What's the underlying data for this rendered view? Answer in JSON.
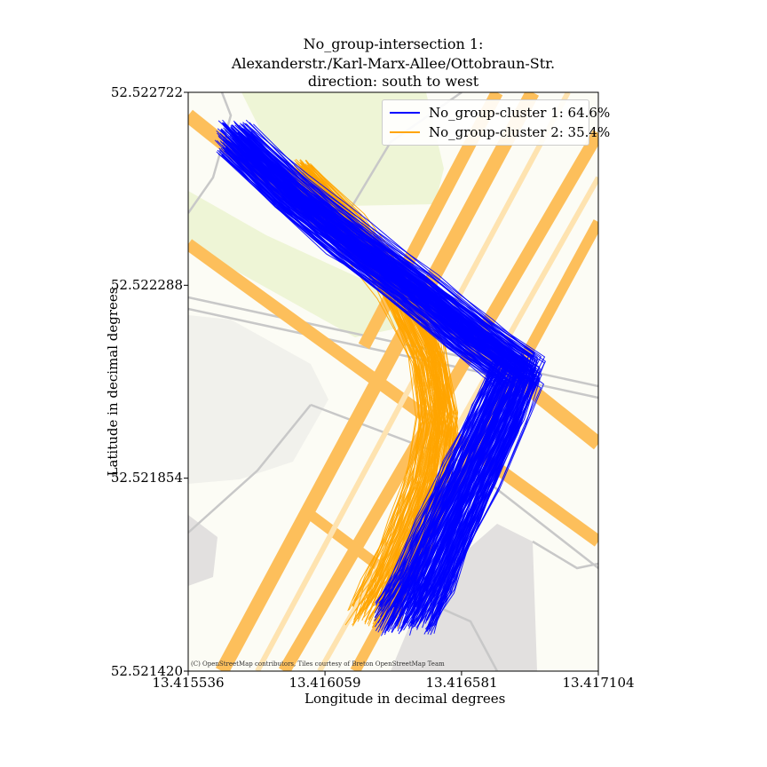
{
  "title": {
    "line1": "No_group-intersection 1:",
    "line2": "Alexanderstr./Karl-Marx-Allee/Ottobraun-Str.",
    "line3": "direction: south to west"
  },
  "attribution": "(C) OpenStreetMap contributors, Tiles courtesy of Breton OpenStreetMap Team",
  "colors": {
    "cluster1": "#0000ff",
    "cluster2": "#ffa500",
    "park": "#eef5d6",
    "road_major": "#fdbf5b",
    "road_minor": "#c8c8c8",
    "building": "#e2e0df",
    "background": "#fcfcf5"
  },
  "chart_data": {
    "type": "line",
    "xlabel": "Longitude in decimal degrees",
    "ylabel": "Latitude in decimal degrees",
    "xlim": [
      13.415536,
      13.417104
    ],
    "ylim": [
      52.52142,
      52.522722
    ],
    "xticks": [
      "13.415536",
      "13.416059",
      "13.416581",
      "13.417104"
    ],
    "yticks": [
      "52.522722",
      "52.522288",
      "52.521854",
      "52.521420"
    ],
    "legend_position": "top-right",
    "grid": false,
    "series": [
      {
        "name": "No_group-cluster 1: 64.6%",
        "color": "#0000ff",
        "share_percent": 64.6,
        "centerline": [
          [
            13.41571,
            52.52262
          ],
          [
            13.41592,
            52.5225
          ],
          [
            13.41615,
            52.52239
          ],
          [
            13.4164,
            52.52228
          ],
          [
            13.41661,
            52.52218
          ],
          [
            13.4168,
            52.5221
          ],
          [
            13.41672,
            52.52199
          ],
          [
            13.41662,
            52.52186
          ],
          [
            13.41652,
            52.52173
          ],
          [
            13.41644,
            52.52162
          ],
          [
            13.41637,
            52.52154
          ]
        ]
      },
      {
        "name": "No_group-cluster 2: 35.4%",
        "color": "#ffa500",
        "share_percent": 35.4,
        "centerline": [
          [
            13.41596,
            52.52254
          ],
          [
            13.41615,
            52.52242
          ],
          [
            13.41633,
            52.52228
          ],
          [
            13.41645,
            52.52213
          ],
          [
            13.41649,
            52.52199
          ],
          [
            13.41645,
            52.52185
          ],
          [
            13.41638,
            52.52173
          ],
          [
            13.4163,
            52.52162
          ],
          [
            13.41624,
            52.52155
          ]
        ]
      }
    ]
  }
}
